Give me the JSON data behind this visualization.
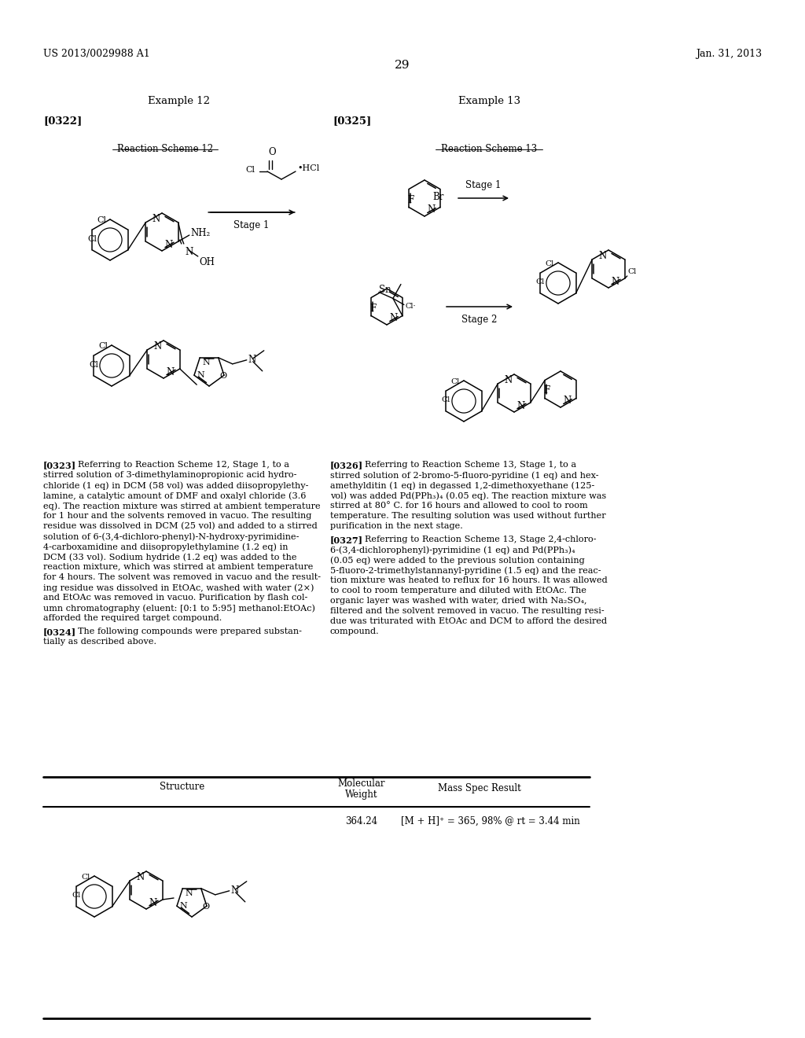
{
  "header_left": "US 2013/0029988 A1",
  "header_right": "Jan. 31, 2013",
  "page_number": "29",
  "ex12_title": "Example 12",
  "ex13_title": "Example 13",
  "tag0322": "[0322]",
  "tag0325": "[0325]",
  "scheme12_label": "Reaction Scheme 12",
  "scheme13_label": "Reaction Scheme 13",
  "stage1": "Stage 1",
  "stage2": "Stage 2",
  "para0323_bold": "[0323]",
  "para0323": "Referring to Reaction Scheme 12, Stage 1, to a stirred solution of 3-dimethylaminopropionic acid hydrochloride (1 eq) in DCM (58 vol) was added diisopropylethylamine, a catalytic amount of DMF and oxalyl chloride (3.6 eq). The reaction mixture was stirred at ambient temperature for 1 hour and the solvents removed in vacuo. The resulting residue was dissolved in DCM (25 vol) and added to a stirred solution of 6-(3,4-dichloro-phenyl)-N-hydroxy-pyrimidine-4-carboxamidine and diisopropylethylamine (1.2 eq) in DCM (33 vol). Sodium hydride (1.2 eq) was added to the reaction mixture, which was stirred at ambient temperature for 4 hours. The solvent was removed in vacuo and the resulting residue was dissolved in EtOAc, washed with water (2×) and EtOAc was removed in vacuo. Purification by flash column chromatography (eluent: [0:1 to 5:95] methanol:EtOAc) afforded the required target compound.",
  "para0324_bold": "[0324]",
  "para0324": "The following compounds were prepared substantially as described above.",
  "para0326_bold": "[0326]",
  "para0326": "Referring to Reaction Scheme 13, Stage 1, to a stirred solution of 2-bromo-5-fluoro-pyridine (1 eq) and hexamethylditin (1 eq) in degassed 1,2-dimethoxyethane (125-vol) was added Pd(PPh₃)₄ (0.05 eq). The reaction mixture was stirred at 80° C. for 16 hours and allowed to cool to room temperature. The resulting solution was used without further purification in the next stage.",
  "para0327_bold": "[0327]",
  "para0327": "Referring to Reaction Scheme 13, Stage 2,4-chloro-6-(3,4-dichlorophenyl)-pyrimidine (1 eq) and Pd(PPh₃)₄ (0.05 eq) were added to the previous solution containing 5-fluoro-2-trimethylstannanyl-pyridine (1.5 eq) and the reaction mixture was heated to reflux for 16 hours. It was allowed to cool to room temperature and diluted with EtOAc. The organic layer was washed with water, dried with Na₂SO₄, filtered and the solvent removed in vacuo. The resulting residue was triturated with EtOAc and DCM to afford the desired compound.",
  "table_col1": "Structure",
  "table_col2a": "Molecular",
  "table_col2b": "Weight",
  "table_col3": "Mass Spec Result",
  "table_mw": "364.24",
  "table_ms": "[M + H]⁺ = 365, 98% @ rt = 3.44 min",
  "bg": "#ffffff"
}
